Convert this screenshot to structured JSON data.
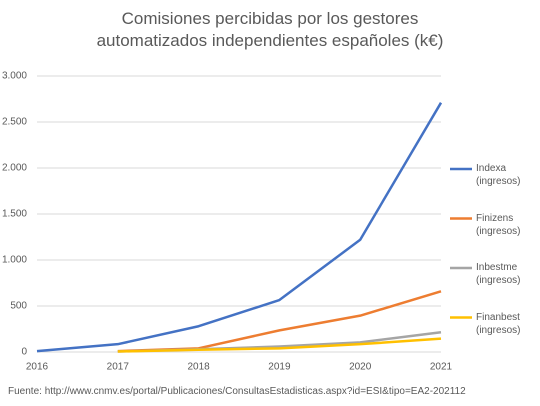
{
  "chart_data": {
    "type": "line",
    "title": "Comisiones percibidas por los gestores automatizados independientes españoles (k€)",
    "x": [
      2016,
      2017,
      2018,
      2019,
      2020,
      2021
    ],
    "xlim": [
      2016,
      2021
    ],
    "xticks": [
      2016,
      2017,
      2018,
      2019,
      2020,
      2021
    ],
    "ylim": [
      0,
      3000
    ],
    "yticks": [
      0,
      {
        "value": 500,
        "label": "500"
      },
      {
        "value": 1000,
        "label": "1.000"
      },
      {
        "value": 1500,
        "label": "1.500"
      },
      {
        "value": 2000,
        "label": "2.000"
      },
      {
        "value": 2500,
        "label": "2.500"
      },
      {
        "value": 3000,
        "label": "3.000"
      }
    ],
    "grid": true,
    "legend": "right",
    "series": [
      {
        "name": "Indexa (ingresos)",
        "color": "#4472c4",
        "values": [
          10,
          85,
          280,
          565,
          1220,
          2710
        ]
      },
      {
        "name": "Finizens (ingresos)",
        "color": "#ed7d31",
        "values": [
          null,
          10,
          40,
          235,
          395,
          660
        ]
      },
      {
        "name": "Inbestme (ingresos)",
        "color": "#a5a5a5",
        "values": [
          null,
          5,
          30,
          60,
          105,
          215
        ]
      },
      {
        "name": "Finanbest (ingresos)",
        "color": "#ffc000",
        "values": [
          null,
          5,
          25,
          40,
          85,
          145
        ]
      }
    ],
    "source": "Fuente: http://www.cnmv.es/portal/Publicaciones/ConsultasEstadisticas.aspx?id=ESI&tipo=EA2-202112"
  }
}
